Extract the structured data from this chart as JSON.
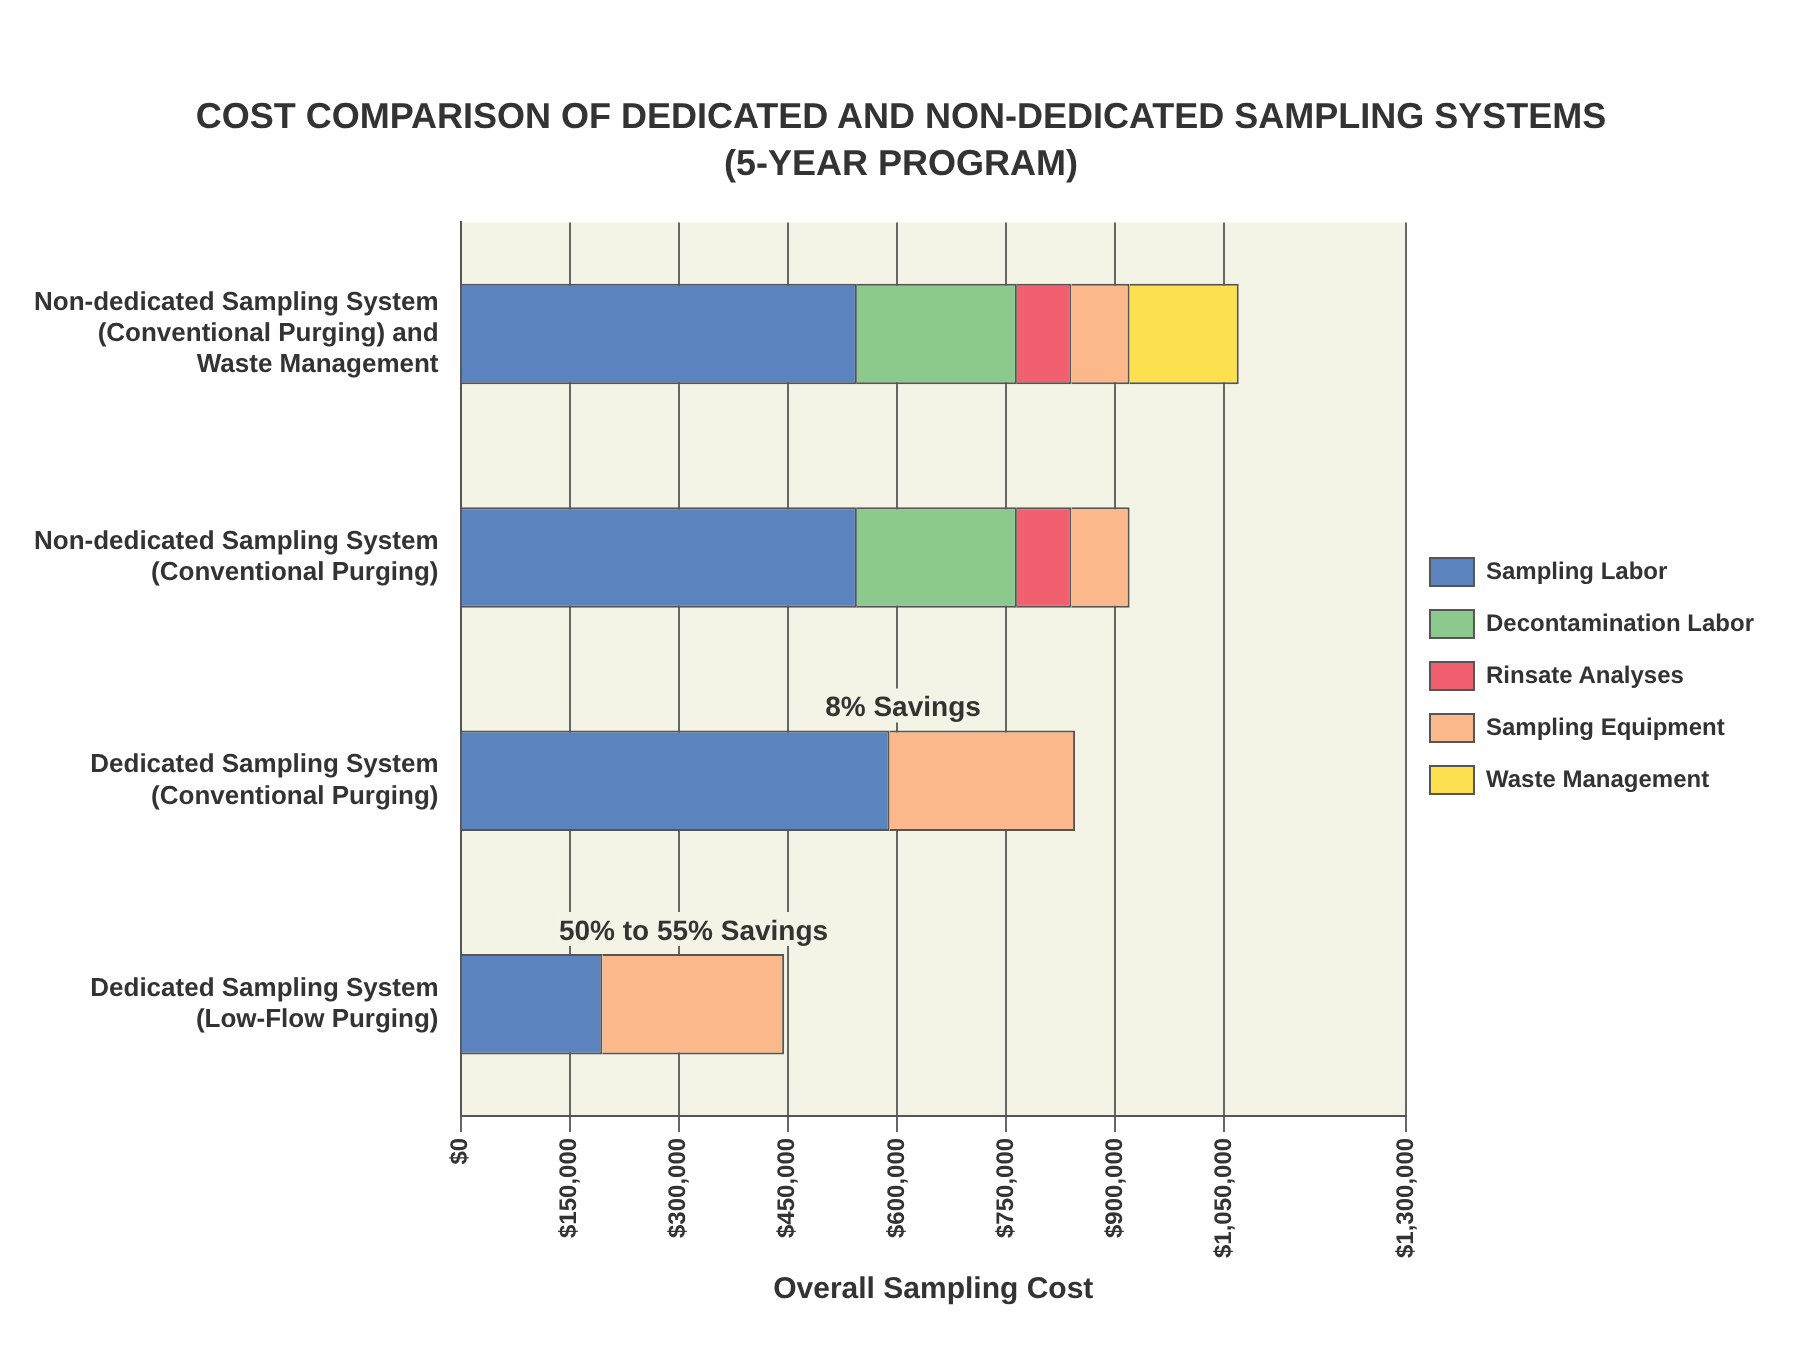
{
  "chart_data": {
    "type": "bar",
    "orientation": "horizontal",
    "stacked": true,
    "title": "COST COMPARISON OF DEDICATED AND NON-DEDICATED SAMPLING SYSTEMS",
    "subtitle": "(5-YEAR PROGRAM)",
    "xlabel": "Overall Sampling Cost",
    "categories": [
      "Non-dedicated Sampling System (Conventional Purging) and Waste Management",
      "Non-dedicated Sampling System (Conventional Purging)",
      "Dedicated Sampling System (Conventional Purging)",
      "Dedicated Sampling System (Low-Flow Purging)"
    ],
    "series": [
      {
        "name": "Sampling Labor",
        "color": "#5b84bf",
        "values": [
          545000,
          545000,
          590000,
          195000
        ]
      },
      {
        "name": "Decontamination Labor",
        "color": "#8cc98c",
        "values": [
          220000,
          220000,
          null,
          null
        ]
      },
      {
        "name": "Rinsate Analyses",
        "color": "#f0606e",
        "values": [
          75000,
          75000,
          null,
          null
        ]
      },
      {
        "name": "Sampling Equipment",
        "color": "#fbb88a",
        "values": [
          80000,
          80000,
          255000,
          250000
        ]
      },
      {
        "name": "Waste Management",
        "color": "#fde050",
        "values": [
          150000,
          null,
          null,
          null
        ]
      }
    ],
    "xlim": [
      0,
      1300000
    ],
    "xticks": [
      {
        "value": 0,
        "label": "$0"
      },
      {
        "value": 150000,
        "label": "$150,000"
      },
      {
        "value": 300000,
        "label": "$300,000"
      },
      {
        "value": 450000,
        "label": "$450,000"
      },
      {
        "value": 600000,
        "label": "$600,000"
      },
      {
        "value": 750000,
        "label": "$750,000"
      },
      {
        "value": 900000,
        "label": "$900,000"
      },
      {
        "value": 1050000,
        "label": "$1,050,000"
      },
      {
        "value": 1300000,
        "label": "$1,300,000"
      }
    ],
    "grid": "x",
    "legend": "right",
    "annotations": [
      "8% Savings",
      "50% to 55% Savings"
    ]
  }
}
